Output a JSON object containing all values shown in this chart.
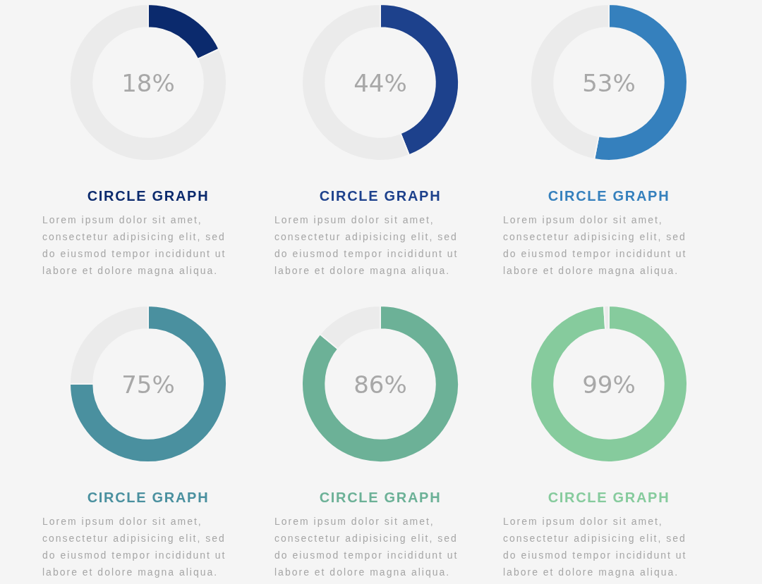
{
  "chart_data": [
    {
      "type": "donut",
      "title": "CIRCLE GRAPH",
      "annotations": [
        "18%",
        "Lorem ipsum dolor sit amet, consectetur adipisicing elit, sed do eiusmod tempor incididunt ut labore et dolore magna aliqua."
      ],
      "categories": [
        null,
        null
      ],
      "values": [
        18,
        82
      ],
      "colors": [
        "#0b2a6d",
        "#ebebeb"
      ]
    },
    {
      "type": "donut",
      "title": "CIRCLE GRAPH",
      "annotations": [
        "44%",
        "Lorem ipsum dolor sit amet, consectetur adipisicing elit, sed do eiusmod tempor incididunt ut labore et dolore magna aliqua."
      ],
      "categories": [
        null,
        null
      ],
      "values": [
        44,
        56
      ],
      "colors": [
        "#1d418c",
        "#ebebeb"
      ]
    },
    {
      "type": "donut",
      "title": "CIRCLE GRAPH",
      "annotations": [
        "53%",
        "Lorem ipsum dolor sit amet, consectetur adipisicing elit, sed do eiusmod tempor incididunt ut labore et dolore magna aliqua."
      ],
      "categories": [
        null,
        null
      ],
      "values": [
        53,
        47
      ],
      "colors": [
        "#3580bd",
        "#ebebeb"
      ]
    },
    {
      "type": "donut",
      "title": "CIRCLE GRAPH",
      "annotations": [
        "75%",
        "Lorem ipsum dolor sit amet, consectetur adipisicing elit, sed do eiusmod tempor incididunt ut labore et dolore magna aliqua."
      ],
      "categories": [
        null,
        null
      ],
      "values": [
        75,
        25
      ],
      "colors": [
        "#4a909f",
        "#ebebeb"
      ]
    },
    {
      "type": "donut",
      "title": "CIRCLE GRAPH",
      "annotations": [
        "86%",
        "Lorem ipsum dolor sit amet, consectetur adipisicing elit, sed do eiusmod tempor incididunt ut labore et dolore magna aliqua."
      ],
      "categories": [
        null,
        null
      ],
      "values": [
        86,
        14
      ],
      "colors": [
        "#6cb197",
        "#ebebeb"
      ]
    },
    {
      "type": "donut",
      "title": "CIRCLE GRAPH",
      "annotations": [
        "99%",
        "Lorem ipsum dolor sit amet, consectetur adipisicing elit, sed do eiusmod tempor incididunt ut labore et dolore magna aliqua."
      ],
      "categories": [
        null,
        null
      ],
      "values": [
        99,
        1
      ],
      "colors": [
        "#86cb9d",
        "#ebebeb"
      ]
    }
  ]
}
